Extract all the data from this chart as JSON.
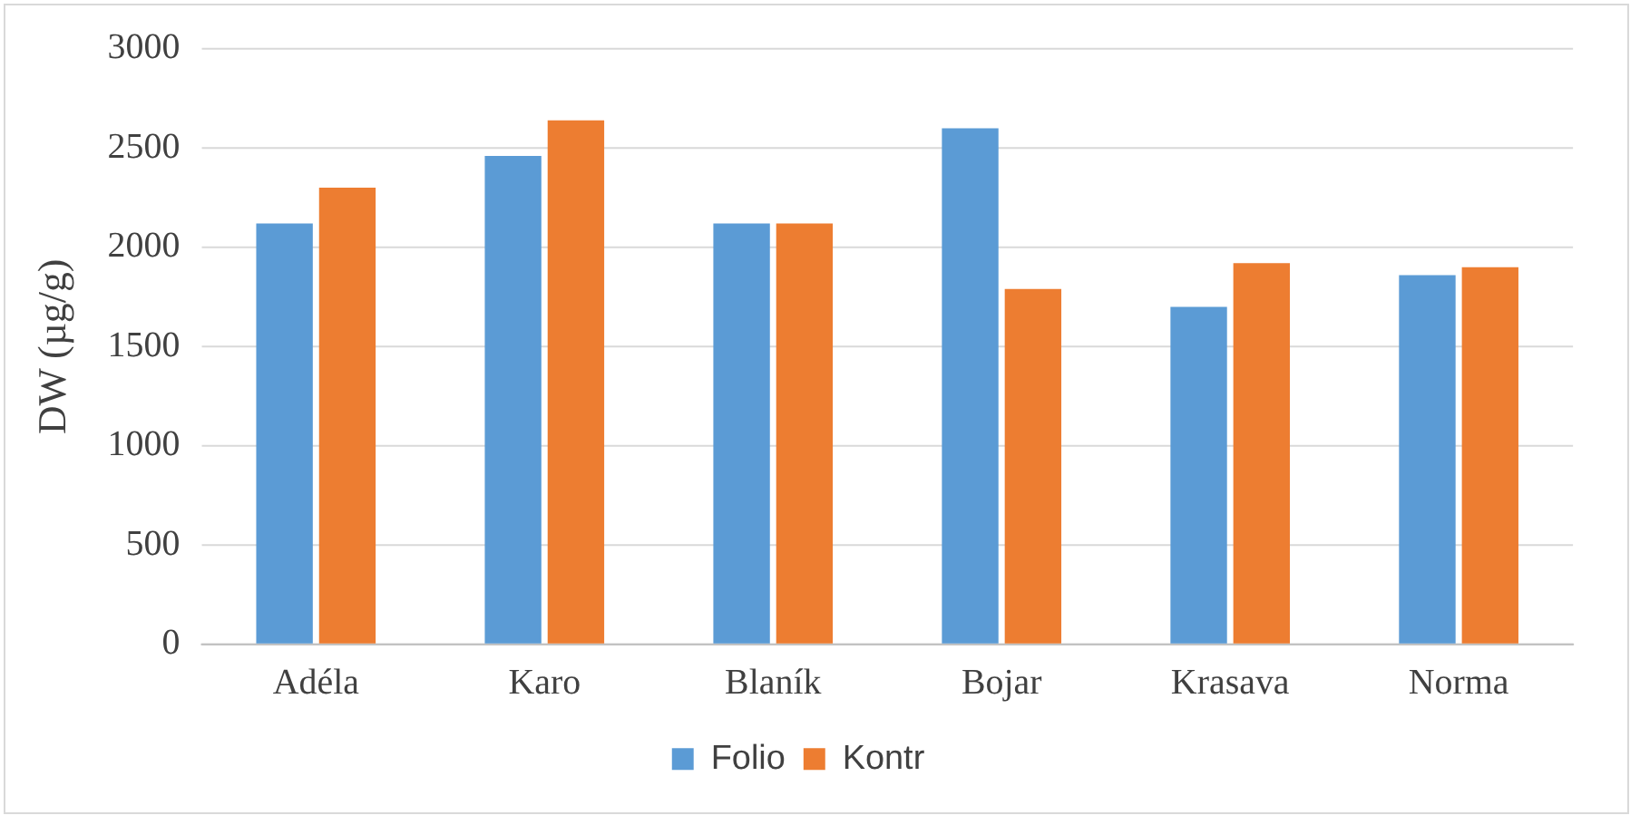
{
  "chart_data": {
    "type": "bar",
    "ylabel": "DW (µg/g)",
    "categories": [
      "Adéla",
      "Karo",
      "Blaník",
      "Bojar",
      "Krasava",
      "Norma"
    ],
    "series": [
      {
        "name": "Folio",
        "color": "#5b9bd5",
        "values": [
          2120,
          2460,
          2120,
          2600,
          1700,
          1860
        ]
      },
      {
        "name": "Kontr",
        "color": "#ed7d31",
        "values": [
          2300,
          2640,
          2120,
          1790,
          1920,
          1900
        ]
      }
    ],
    "ylim": [
      0,
      3000
    ],
    "yticks": [
      0,
      500,
      1000,
      1500,
      2000,
      2500,
      3000
    ],
    "grid": "y",
    "legend": "bottom"
  }
}
